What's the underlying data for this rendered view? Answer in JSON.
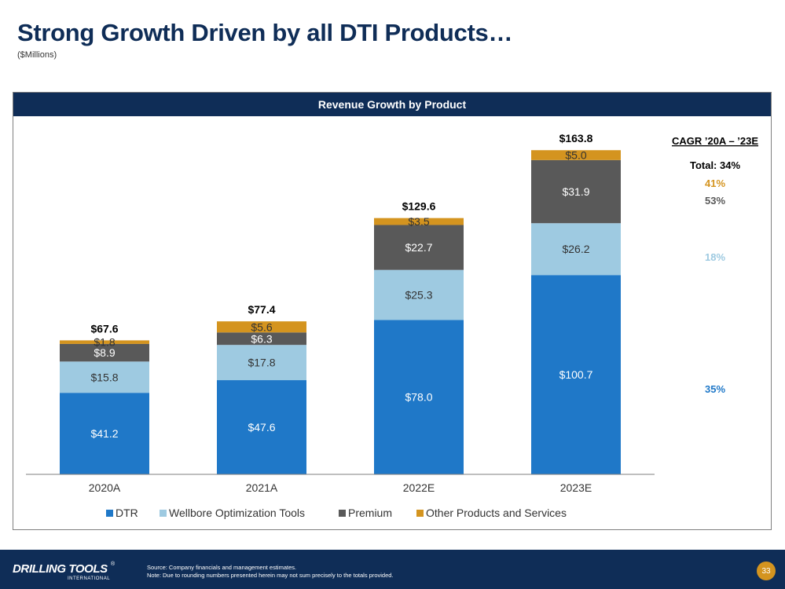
{
  "slide": {
    "title": "Strong Growth Driven by all DTI Products…",
    "subtitle": "($Millions)",
    "panel_title": "Revenue Growth by Product"
  },
  "chart_data": {
    "type": "bar",
    "stacked": true,
    "title": "Revenue Growth by Product",
    "unit": "$Millions",
    "categories": [
      "2020A",
      "2021A",
      "2022E",
      "2023E"
    ],
    "series": [
      {
        "name": "DTR",
        "color": "#1f78c8",
        "label_color": "#ffffff",
        "values": [
          41.2,
          47.6,
          78.0,
          100.7
        ],
        "labels": [
          "$41.2",
          "$47.6",
          "$78.0",
          "$100.7"
        ]
      },
      {
        "name": "Wellbore Optimization Tools",
        "color": "#9ecae1",
        "label_color": "#333333",
        "values": [
          15.8,
          17.8,
          25.3,
          26.2
        ],
        "labels": [
          "$15.8",
          "$17.8",
          "$25.3",
          "$26.2"
        ]
      },
      {
        "name": "Premium",
        "color": "#595959",
        "label_color": "#ffffff",
        "values": [
          8.9,
          6.3,
          22.7,
          31.9
        ],
        "labels": [
          "$8.9",
          "$6.3",
          "$22.7",
          "$31.9"
        ]
      },
      {
        "name": "Other Products and Services",
        "color": "#d4941f",
        "label_color": "#333333",
        "values": [
          1.8,
          5.6,
          3.5,
          5.0
        ],
        "labels": [
          "$1.8",
          "$5.6",
          "$3.5",
          "$5.0"
        ]
      }
    ],
    "totals": [
      67.6,
      77.4,
      129.6,
      163.8
    ],
    "total_labels": [
      "$67.6",
      "$77.4",
      "$129.6",
      "$163.8"
    ],
    "ylim": [
      0,
      175
    ],
    "grid": false,
    "legend_position": "bottom",
    "cagr": {
      "heading": "CAGR ’20A – ’23E",
      "total": "Total: 34%",
      "by_series": [
        {
          "series": "Other Products and Services",
          "value": "41%",
          "color": "#d4941f"
        },
        {
          "series": "Premium",
          "value": "53%",
          "color": "#595959"
        },
        {
          "series": "Wellbore Optimization Tools",
          "value": "18%",
          "color": "#9ecae1"
        },
        {
          "series": "DTR",
          "value": "35%",
          "color": "#1f78c8"
        }
      ]
    }
  },
  "footer": {
    "logo_text": "DRILLING TOOLS",
    "logo_subtext": "INTERNATIONAL",
    "logo_mark": "®",
    "source_note": "Source: Company financials and management estimates.",
    "rounding_note": "Note: Due to rounding numbers presented herein may not sum precisely to the totals provided.",
    "page_number": "33"
  },
  "colors": {
    "brand_navy": "#0f2d57",
    "accent_gold": "#d4941f"
  }
}
